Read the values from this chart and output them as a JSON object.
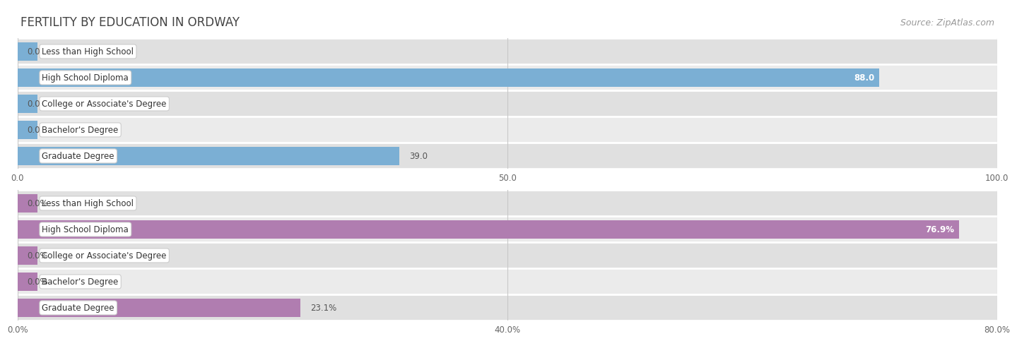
{
  "title": "FERTILITY BY EDUCATION IN ORDWAY",
  "source": "Source: ZipAtlas.com",
  "top_chart": {
    "categories": [
      "Less than High School",
      "High School Diploma",
      "College or Associate's Degree",
      "Bachelor's Degree",
      "Graduate Degree"
    ],
    "values": [
      0.0,
      88.0,
      0.0,
      0.0,
      39.0
    ],
    "xlim": [
      0,
      100
    ],
    "xticks": [
      0.0,
      50.0,
      100.0
    ],
    "xtick_labels": [
      "0.0",
      "50.0",
      "100.0"
    ],
    "bar_color": "#7BAFD4",
    "label_inside_color": "#ffffff",
    "label_outside_color": "#555555",
    "inside_threshold": 80,
    "value_format": ""
  },
  "bottom_chart": {
    "categories": [
      "Less than High School",
      "High School Diploma",
      "College or Associate's Degree",
      "Bachelor's Degree",
      "Graduate Degree"
    ],
    "values": [
      0.0,
      76.9,
      0.0,
      0.0,
      23.1
    ],
    "xlim": [
      0,
      80
    ],
    "xticks": [
      0.0,
      40.0,
      80.0
    ],
    "xtick_labels": [
      "0.0%",
      "40.0%",
      "80.0%"
    ],
    "bar_color": "#B07DB0",
    "label_inside_color": "#ffffff",
    "label_outside_color": "#555555",
    "inside_threshold": 70,
    "value_format": "%"
  },
  "bg_color": "#f0f0f0",
  "row_bg_color": "#e0e0e0",
  "row_bg_light": "#ebebeb",
  "separator_color": "#ffffff",
  "label_bg_color": "#ffffff",
  "label_border_color": "#cccccc",
  "grid_color": "#c8c8c8",
  "title_color": "#444444",
  "tick_color": "#666666",
  "font_size_title": 12,
  "font_size_labels": 8.5,
  "font_size_ticks": 8.5,
  "font_size_values": 8.5,
  "font_size_source": 9
}
